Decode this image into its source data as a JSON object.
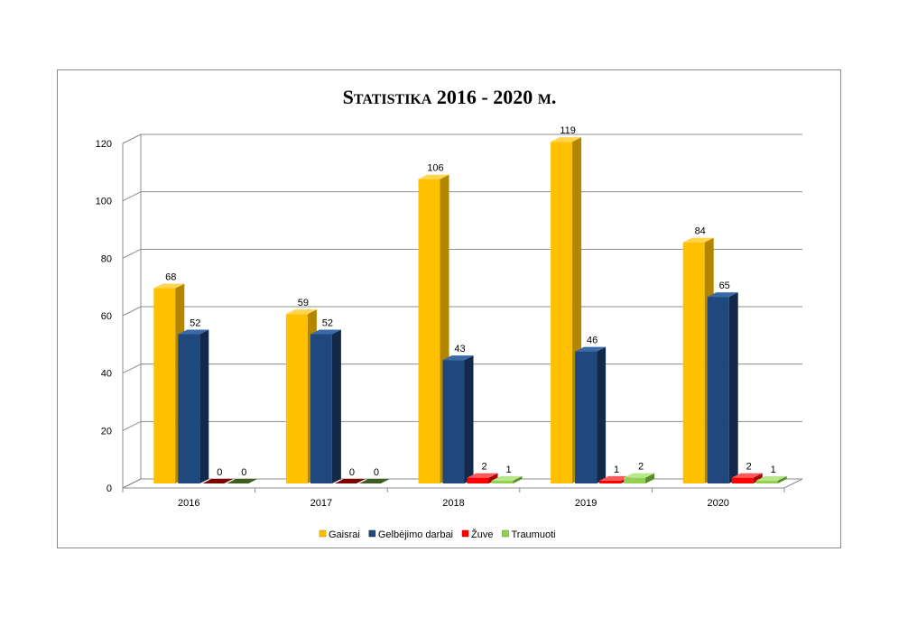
{
  "chart_data": {
    "type": "bar",
    "title_parts": [
      "S",
      "TATISTIKA",
      "  2016 - 2020 ",
      "M",
      "."
    ],
    "categories": [
      "2016",
      "2017",
      "2018",
      "2019",
      "2020"
    ],
    "series": [
      {
        "name": "Gaisrai",
        "values": [
          68,
          59,
          106,
          119,
          84
        ],
        "color": "#ffc000",
        "side": "#b38600",
        "top": "#ffd54f"
      },
      {
        "name": "Gelbėjimo darbai",
        "values": [
          52,
          52,
          43,
          46,
          65
        ],
        "color": "#1f497d",
        "side": "#12294a",
        "top": "#3a6aa8"
      },
      {
        "name": "Žuve",
        "values": [
          0,
          0,
          2,
          1,
          2
        ],
        "color": "#ff0000",
        "side": "#a30000",
        "top": "#ff5a5a"
      },
      {
        "name": "Traumuoti",
        "values": [
          0,
          0,
          1,
          2,
          1
        ],
        "color": "#92d050",
        "side": "#5e8a2e",
        "top": "#b8e68a"
      }
    ],
    "zero_colors": {
      "Žuve": "#7f0000",
      "Traumuoti": "#3f5f20"
    },
    "ylim": [
      0,
      120
    ],
    "yticks": [
      0,
      20,
      40,
      60,
      80,
      100,
      120
    ],
    "grid": true,
    "legend_position": "bottom",
    "xlabel": "",
    "ylabel": ""
  }
}
